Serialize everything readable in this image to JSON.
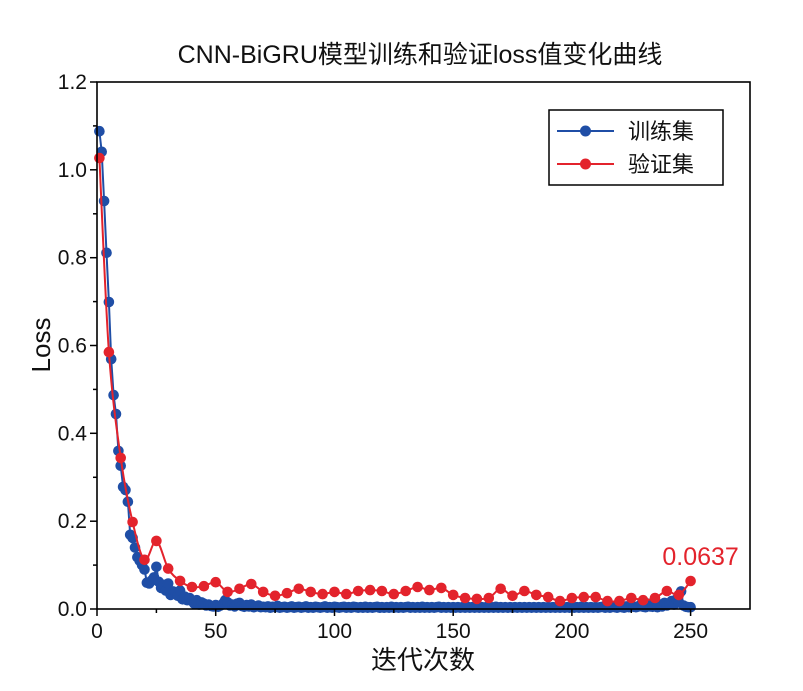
{
  "chart_data": {
    "type": "line",
    "title": "CNN-BiGRU模型训练和验证loss值变化曲线",
    "xlabel": "迭代次数",
    "ylabel": "Loss",
    "xlim": [
      0,
      275
    ],
    "ylim": [
      0,
      1.2
    ],
    "xticks": [
      "0",
      "50",
      "100",
      "150",
      "200",
      "250"
    ],
    "yticks": [
      "0.0",
      "0.2",
      "0.4",
      "0.6",
      "0.8",
      "1.0",
      "1.2"
    ],
    "grid": false,
    "legend_position": "top-right",
    "series": [
      {
        "name": "训练集",
        "color": "#1f4ea6",
        "x": [
          1,
          2,
          3,
          4,
          5,
          6,
          7,
          8,
          9,
          10,
          11,
          12,
          13,
          14,
          15,
          16,
          17,
          18,
          19,
          20,
          21,
          22,
          23,
          24,
          25,
          26,
          27,
          28,
          29,
          30,
          31,
          32,
          33,
          34,
          35,
          36,
          37,
          38,
          39,
          40,
          41,
          42,
          43,
          44,
          45,
          46,
          47,
          48,
          49,
          50,
          51,
          52,
          53,
          54,
          55,
          56,
          57,
          58,
          59,
          60,
          61,
          62,
          63,
          64,
          65,
          66,
          67,
          68,
          69,
          70,
          71,
          72,
          73,
          74,
          75,
          76,
          77,
          78,
          79,
          80,
          81,
          82,
          83,
          84,
          85,
          86,
          87,
          88,
          89,
          90,
          91,
          92,
          93,
          94,
          95,
          96,
          97,
          98,
          99,
          100,
          101,
          102,
          103,
          104,
          105,
          106,
          107,
          108,
          109,
          110,
          111,
          112,
          113,
          114,
          115,
          116,
          117,
          118,
          119,
          120,
          121,
          122,
          123,
          124,
          125,
          126,
          127,
          128,
          129,
          130,
          131,
          132,
          133,
          134,
          135,
          136,
          137,
          138,
          139,
          140,
          141,
          142,
          143,
          144,
          145,
          146,
          147,
          148,
          149,
          150,
          151,
          152,
          153,
          154,
          155,
          156,
          157,
          158,
          159,
          160,
          161,
          162,
          163,
          164,
          165,
          166,
          167,
          168,
          169,
          170,
          171,
          172,
          173,
          174,
          175,
          176,
          177,
          178,
          179,
          180,
          181,
          182,
          183,
          184,
          185,
          186,
          187,
          188,
          189,
          190,
          191,
          192,
          193,
          194,
          195,
          196,
          197,
          198,
          199,
          200,
          201,
          202,
          203,
          204,
          205,
          206,
          207,
          208,
          209,
          210,
          211,
          212,
          213,
          214,
          215,
          216,
          217,
          218,
          219,
          220,
          221,
          222,
          223,
          224,
          225,
          226,
          227,
          228,
          229,
          230,
          231,
          232,
          233,
          234,
          235,
          236,
          237,
          238,
          239,
          240,
          241,
          242,
          243,
          244,
          245,
          246,
          247,
          248,
          249,
          250
        ],
        "y": [
          1.088,
          1.041,
          0.929,
          0.811,
          0.699,
          0.569,
          0.487,
          0.444,
          0.36,
          0.326,
          0.278,
          0.271,
          0.244,
          0.169,
          0.162,
          0.14,
          0.118,
          0.11,
          0.1,
          0.09,
          0.06,
          0.058,
          0.065,
          0.072,
          0.096,
          0.062,
          0.048,
          0.055,
          0.042,
          0.058,
          0.032,
          0.04,
          0.038,
          0.03,
          0.042,
          0.022,
          0.028,
          0.02,
          0.025,
          0.018,
          0.012,
          0.02,
          0.01,
          0.015,
          0.012,
          0.008,
          0.01,
          0.007,
          0.006,
          0.009,
          0.005,
          0.008,
          0.012,
          0.02,
          0.015,
          0.008,
          0.01,
          0.006,
          0.012,
          0.014,
          0.007,
          0.005,
          0.009,
          0.006,
          0.01,
          0.004,
          0.006,
          0.008,
          0.004,
          0.005,
          0.004,
          0.006,
          0.003,
          0.005,
          0.004,
          0.007,
          0.003,
          0.004,
          0.005,
          0.003,
          0.004,
          0.006,
          0.003,
          0.004,
          0.005,
          0.003,
          0.004,
          0.006,
          0.003,
          0.004,
          0.003,
          0.005,
          0.004,
          0.003,
          0.004,
          0.006,
          0.003,
          0.004,
          0.003,
          0.005,
          0.004,
          0.003,
          0.004,
          0.005,
          0.003,
          0.004,
          0.003,
          0.005,
          0.004,
          0.003,
          0.004,
          0.003,
          0.005,
          0.003,
          0.004,
          0.003,
          0.004,
          0.005,
          0.003,
          0.004,
          0.003,
          0.004,
          0.003,
          0.005,
          0.003,
          0.004,
          0.003,
          0.004,
          0.003,
          0.004,
          0.005,
          0.003,
          0.004,
          0.003,
          0.004,
          0.003,
          0.005,
          0.003,
          0.004,
          0.003,
          0.004,
          0.003,
          0.004,
          0.005,
          0.003,
          0.004,
          0.003,
          0.004,
          0.003,
          0.004,
          0.003,
          0.004,
          0.003,
          0.004,
          0.003,
          0.005,
          0.003,
          0.004,
          0.003,
          0.004,
          0.003,
          0.004,
          0.003,
          0.004,
          0.003,
          0.004,
          0.003,
          0.005,
          0.003,
          0.004,
          0.003,
          0.004,
          0.003,
          0.004,
          0.003,
          0.004,
          0.003,
          0.004,
          0.003,
          0.004,
          0.003,
          0.004,
          0.003,
          0.004,
          0.003,
          0.004,
          0.003,
          0.004,
          0.003,
          0.004,
          0.003,
          0.004,
          0.003,
          0.004,
          0.003,
          0.004,
          0.003,
          0.004,
          0.003,
          0.004,
          0.003,
          0.004,
          0.003,
          0.005,
          0.003,
          0.004,
          0.003,
          0.004,
          0.003,
          0.004,
          0.003,
          0.004,
          0.005,
          0.003,
          0.004,
          0.003,
          0.006,
          0.004,
          0.003,
          0.005,
          0.004,
          0.003,
          0.006,
          0.004,
          0.008,
          0.005,
          0.004,
          0.006,
          0.01,
          0.005,
          0.004,
          0.012,
          0.006,
          0.005,
          0.008,
          0.004,
          0.01,
          0.006,
          0.014,
          0.008,
          0.012,
          0.018,
          0.01,
          0.022,
          0.015,
          0.04,
          0.008,
          0.005,
          0.004,
          0.004
        ]
      },
      {
        "name": "验证集",
        "color": "#e3232c",
        "x": [
          1,
          5,
          10,
          15,
          20,
          25,
          30,
          35,
          40,
          45,
          50,
          55,
          60,
          65,
          70,
          75,
          80,
          85,
          90,
          95,
          100,
          105,
          110,
          115,
          120,
          125,
          130,
          135,
          140,
          145,
          150,
          155,
          160,
          165,
          170,
          175,
          180,
          185,
          190,
          195,
          200,
          205,
          210,
          215,
          220,
          225,
          230,
          235,
          240,
          245,
          250
        ],
        "y": [
          1.027,
          0.585,
          0.344,
          0.198,
          0.112,
          0.155,
          0.092,
          0.064,
          0.05,
          0.052,
          0.061,
          0.039,
          0.046,
          0.057,
          0.039,
          0.03,
          0.036,
          0.046,
          0.039,
          0.034,
          0.039,
          0.034,
          0.041,
          0.043,
          0.041,
          0.034,
          0.041,
          0.05,
          0.043,
          0.048,
          0.032,
          0.025,
          0.023,
          0.025,
          0.046,
          0.03,
          0.041,
          0.032,
          0.027,
          0.018,
          0.025,
          0.027,
          0.027,
          0.018,
          0.018,
          0.025,
          0.02,
          0.025,
          0.041,
          0.032,
          0.0637
        ]
      }
    ],
    "annotations": [
      {
        "text": "0.0637",
        "x": 250,
        "y": 0.0637,
        "color": "#e3232c"
      }
    ]
  }
}
